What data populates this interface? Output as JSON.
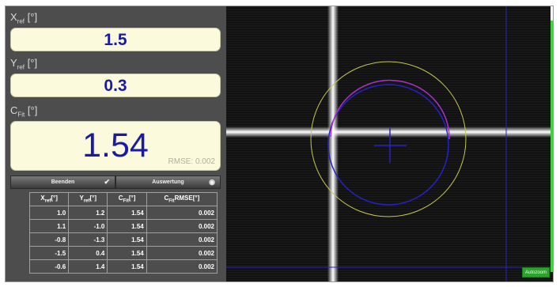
{
  "fields": {
    "x": {
      "label_main": "X",
      "label_sub": "ref",
      "label_unit": " [°]",
      "value": "1.5"
    },
    "y": {
      "label_main": "Y",
      "label_sub": "ref",
      "label_unit": " [°]",
      "value": "0.3"
    },
    "c": {
      "label_main": "C",
      "label_sub": "Fit",
      "label_unit": " [°]",
      "value": "1.54",
      "rmse": "RMSE: 0.002"
    }
  },
  "buttons": {
    "finish": {
      "label": "Beenden",
      "icon": "checkmark-icon"
    },
    "evaluate": {
      "label": "Auswertung",
      "icon": "eye-icon"
    }
  },
  "table": {
    "headers": [
      {
        "main": "X",
        "sub": "ref",
        "unit": "[°]"
      },
      {
        "main": "Y",
        "sub": "ref",
        "unit": "[°]"
      },
      {
        "main": "C",
        "sub": "Fit",
        "unit": "[°]"
      },
      {
        "main": "C",
        "sub": "Fit",
        "unit": "RMSE[°]"
      }
    ],
    "rows": [
      [
        "1.0",
        "1.2",
        "1.54",
        "0.002"
      ],
      [
        "1.1",
        "-1.0",
        "1.54",
        "0.002"
      ],
      [
        "-0.8",
        "-1.3",
        "1.54",
        "0.002"
      ],
      [
        "-1.5",
        "0.4",
        "1.54",
        "0.002"
      ],
      [
        "-0.6",
        "1.4",
        "1.54",
        "0.002"
      ]
    ]
  },
  "view": {
    "autozoom_label": "Autozoom",
    "colors": {
      "crosshair": "#f2f2f2",
      "yellow_circle": "#c8c84a",
      "blue": "#2424c8",
      "magenta": "#b030c8",
      "progress": "#3fd43f"
    }
  }
}
